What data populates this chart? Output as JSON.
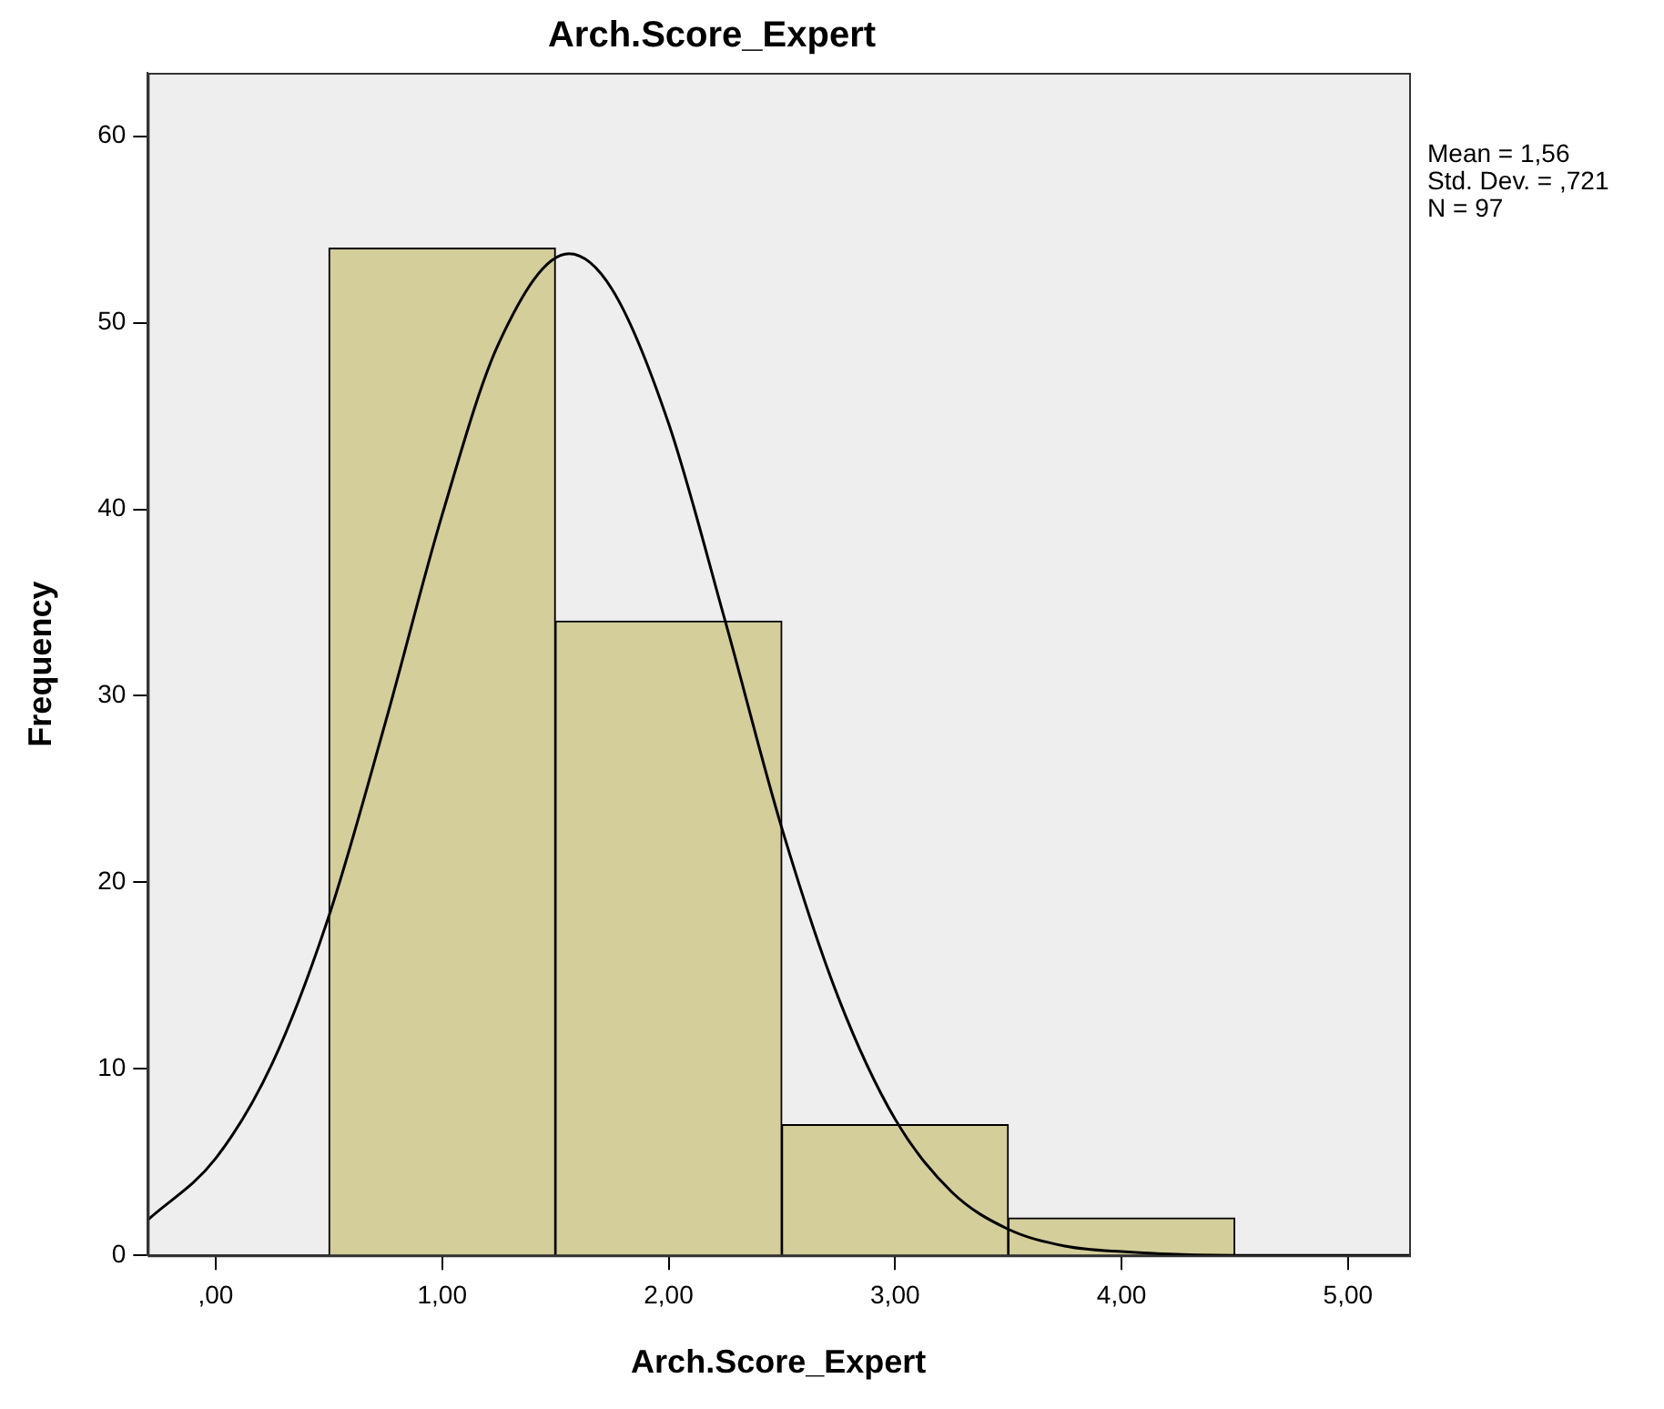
{
  "chart_data": {
    "type": "histogram",
    "title": "Arch.Score_Expert",
    "xlabel": "Arch.Score_Expert",
    "ylabel": "Frequency",
    "bins": [
      0.5,
      1.5,
      2.5,
      3.5,
      4.5
    ],
    "values": [
      54,
      34,
      7,
      2
    ],
    "color": "#d3ce9a",
    "series": [
      {
        "type": "line",
        "color": "#000000",
        "x": [
          -0.3,
          0,
          0.25,
          0.5,
          0.75,
          1,
          1.25,
          1.56,
          1.75,
          2,
          2.25,
          2.5,
          2.75,
          3,
          3.25,
          3.5,
          3.75,
          4,
          4.5,
          5,
          5.27
        ],
        "values": [
          1.9,
          5.2,
          10.3,
          18.2,
          28.6,
          39.7,
          48.9,
          53.7,
          51.8,
          44.6,
          34,
          22.9,
          13.8,
          7.3,
          3.4,
          1.4,
          0.5,
          0.2,
          0,
          0,
          0
        ]
      }
    ],
    "xlim": [
      -0.3,
      5.27
    ],
    "ylim": [
      0,
      63.4
    ],
    "xticks": [
      {
        "value": 0,
        "label": ",00"
      },
      {
        "value": 1,
        "label": "1,00"
      },
      {
        "value": 2,
        "label": "2,00"
      },
      {
        "value": 3,
        "label": "3,00"
      },
      {
        "value": 4,
        "label": "4,00"
      },
      {
        "value": 5,
        "label": "5,00"
      }
    ],
    "yticks": [
      0,
      10,
      20,
      30,
      40,
      50,
      60
    ],
    "annotations": [
      "Mean = 1,56",
      "Std. Dev. = ,721",
      "N = 97"
    ],
    "grid": false,
    "legend": false,
    "marker": "none"
  }
}
